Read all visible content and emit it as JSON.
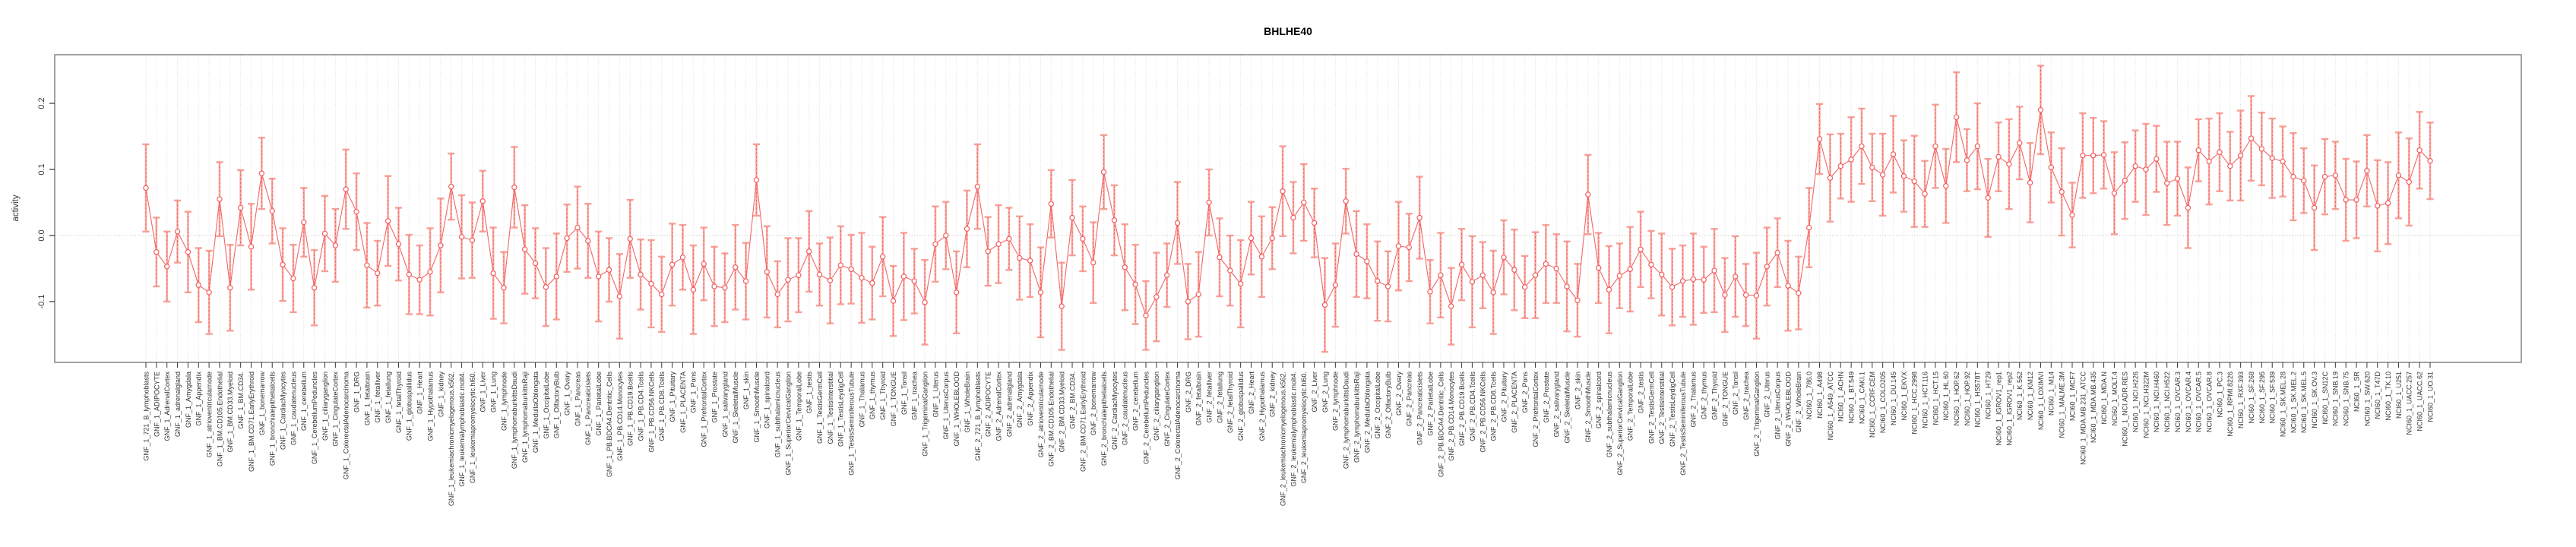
{
  "chart_data": {
    "type": "line",
    "title": "BHLHE40",
    "xlabel": "",
    "ylabel": "activity",
    "ylim": [
      -0.19,
      0.27
    ],
    "yticks": [
      -0.1,
      0.0,
      0.1,
      0.2
    ],
    "ytick_labels": [
      "-0.1",
      "0.0",
      "0.1",
      "0.2"
    ],
    "grid": "vertical-dotted",
    "zero_line": true,
    "legend": "none",
    "point_style": "open-circle-with-error-bars",
    "categories": [
      "GNF_1_721_B_lymphoblasts",
      "GNF_1_ADIPOCYTE",
      "GNF_1_AdrenalCortex",
      "GNF_1_adrenalgland",
      "GNF_1_Amygdala",
      "GNF_1_Appendix",
      "GNF_1_atrioventricularnode",
      "GNF_1_BM.CD105.Endothelial",
      "GNF_1_BM.CD33.Myeloid",
      "GNF_1_BM.CD34.",
      "GNF_1_BM.CD71.EarlyErythroid",
      "GNF_1_bonemarrow",
      "GNF_1_bronchialepithelialcells",
      "GNF_1_CardiacMyocytes",
      "GNF_1_caudatenucleus",
      "GNF_1_cerebellum",
      "GNF_1_CerebellumPeduncles",
      "GNF_1_ciliaryganglion",
      "GNF_1_CingulateCortex",
      "GNF_1_ColorectalAdenocarcinoma",
      "GNF_1_DRG",
      "GNF_1_fetalbrain",
      "GNF_1_fetalliver",
      "GNF_1_fetallung",
      "GNF_1_fetalThyroid",
      "GNF_1_globuspallidus",
      "GNF_1_Heart",
      "GNF_1_Hypothalamus",
      "GNF_1_kidney",
      "GNF_1_leukemiachronicmyelogenous.k562.",
      "GNF_1_leukemialymphoblastic.molt4.",
      "GNF_1_leukemiapromyelocytic.hl60.",
      "GNF_1_Liver",
      "GNF_1_Lung",
      "GNF_1_lymphnode",
      "GNF_1_lymphomaburkittsDaudi",
      "GNF_1_lymphomaburkittsRaji",
      "GNF_1_MedullaOblongata",
      "GNF_1_OccipitalLobe",
      "GNF_1_OlfactoryBulb",
      "GNF_1_Ovary",
      "GNF_1_Pancreas",
      "GNF_1_Pancreaticislets",
      "GNF_1_ParietalLobe",
      "GNF_1_PB.BDCA4.Dentritic_Cells",
      "GNF_1_PB.CD14.Monocytes",
      "GNF_1_PB.CD19.Bcells",
      "GNF_1_PB.CD4.Tcells",
      "GNF_1_PB.CD56.NKCells",
      "GNF_1_PB.CD8.Tcells",
      "GNF_1_Pituitary",
      "GNF_1_PLACENTA",
      "GNF_1_Pons",
      "GNF_1_PrefrontalCortex",
      "GNF_1_Prostate",
      "GNF_1_salivarygland",
      "GNF_1_SkeletalMuscle",
      "GNF_1_skin",
      "GNF_1_SmoothMuscle",
      "GNF_1_spinalcord",
      "GNF_1_subthalamicnucleus",
      "GNF_1_SuperiorCervicalGanglion",
      "GNF_1_TemporalLobe",
      "GNF_1_testis",
      "GNF_1_TestisGermCell",
      "GNF_1_TestisInterstitial",
      "GNF_1_TestisLeydigCell",
      "GNF_1_TestisSeminiferousTubule",
      "GNF_1_Thalamus",
      "GNF_1_thymus",
      "GNF_1_Thyroid",
      "GNF_1_TONGUE",
      "GNF_1_Tonsil",
      "GNF_1_trachea",
      "GNF_1_TrigeminalGanglion",
      "GNF_1_Uterus",
      "GNF_1_UterusCorpus",
      "GNF_1_WHOLEBLOOD",
      "GNF_1_WholeBrain",
      "GNF_2_721_B_lymphoblasts",
      "GNF_2_ADIPOCYTE",
      "GNF_2_AdrenalCortex",
      "GNF_2_adrenalgland",
      "GNF_2_Amygdala",
      "GNF_2_Appendix",
      "GNF_2_atrioventricularnode",
      "GNF_2_BM.CD105.Endothelial",
      "GNF_2_BM.CD33.Myeloid",
      "GNF_2_BM.CD34.",
      "GNF_2_BM.CD71.EarlyErythroid",
      "GNF_2_bonemarrow",
      "GNF_2_bronchialepithelialcells",
      "GNF_2_CardiacMyocytes",
      "GNF_2_caudatenucleus",
      "GNF_2_cerebellum",
      "GNF_2_CerebellumPeduncles",
      "GNF_2_ciliaryganglion",
      "GNF_2_CingulateCortex",
      "GNF_2_ColorectalAdenocarcinoma",
      "GNF_2_DRG",
      "GNF_2_fetalbrain",
      "GNF_2_fetalliver",
      "GNF_2_fetallung",
      "GNF_2_fetalThyroid",
      "GNF_2_globuspallidus",
      "GNF_2_Heart",
      "GNF_2_Hypothalamus",
      "GNF_2_kidney",
      "GNF_2_leukemiachronicmyelogenous.k562.",
      "GNF_2_leukemialymphoblastic.molt4.",
      "GNF_2_leukemiapromyelocytic.hl60.",
      "GNF_2_Liver",
      "GNF_2_Lung",
      "GNF_2_lymphnode",
      "GNF_2_lymphomaburkittsDaudi",
      "GNF_2_lymphomaburkittsRaji",
      "GNF_2_MedullaOblongata",
      "GNF_2_OccipitalLobe",
      "GNF_2_OlfactoryBulb",
      "GNF_2_Ovary",
      "GNF_2_Pancreas",
      "GNF_2_Pancreaticislets",
      "GNF_2_ParietalLobe",
      "GNF_2_PB.BDCA4.Dentritic_Cells",
      "GNF_2_PB.CD14.Monocytes",
      "GNF_2_PB.CD19.Bcells",
      "GNF_2_PB.CD4.Tcells",
      "GNF_2_PB.CD56.NKCells",
      "GNF_2_PB.CD8.Tcells",
      "GNF_2_Pituitary",
      "GNF_2_PLACENTA",
      "GNF_2_Pons",
      "GNF_2_PrefrontalCortex",
      "GNF_2_Prostate",
      "GNF_2_salivarygland",
      "GNF_2_SkeletalMuscle",
      "GNF_2_skin",
      "GNF_2_SmoothMuscle",
      "GNF_2_spinalcord",
      "GNF_2_subthalamicnucleus",
      "GNF_2_SuperiorCervicalGanglion",
      "GNF_2_TemporalLobe",
      "GNF_2_testis",
      "GNF_2_TestisGermCell",
      "GNF_2_TestisInterstitial",
      "GNF_2_TestisLeydigCell",
      "GNF_2_TestisSeminiferousTubule",
      "GNF_2_Thalamus",
      "GNF_2_thymus",
      "GNF_2_Thyroid",
      "GNF_2_TONGUE",
      "GNF_2_Tonsil",
      "GNF_2_trachea",
      "GNF_2_TrigeminalGanglion",
      "GNF_2_Uterus",
      "GNF_2_UterusCorpus",
      "GNF_2_WHOLEBLOOD",
      "GNF_2_WholeBrain",
      "NCI60_1_786.0",
      "NCI60_1_A498",
      "NCI60_1_A549_ATCC",
      "NCI60_1_ACHN",
      "NCI60_1_BT.549",
      "NCI60_1_CAKI.1",
      "NCI60_1_CCRF.CEM",
      "NCI60_1_COLO205",
      "NCI60_1_DU.145",
      "NCI60_1_EKVX",
      "NCI60_1_HCC.2998",
      "NCI60_1_HCT.116",
      "NCI60_1_HCT.15",
      "NCI60_1_HL.60",
      "NCI60_1_HOP.62",
      "NCI60_1_HOP.92",
      "NCI60_1_HS578T",
      "NCI60_1_HT29",
      "NCI60_1_IGROV1_rep1",
      "NCI60_1_IGROV1_rep2",
      "NCI60_1_K.562",
      "NCI60_1_KM12",
      "NCI60_1_LOXIMVI",
      "NCI60_1_M14",
      "NCI60_1_MALME.3M",
      "NCI60_1_MCF7",
      "NCI60_1_MDA.MB.231_ATCC",
      "NCI60_1_MDA.MB.435",
      "NCI60_1_MDA.N",
      "NCI60_1_MOLT.4",
      "NCI60_1_NCI.ADR.RES",
      "NCI60_1_NCI.H226",
      "NCI60_1_NCI.H322M",
      "NCI60_1_NCI.H460",
      "NCI60_1_NCI.H522",
      "NCI60_1_OVCAR.3",
      "NCI60_1_OVCAR.4",
      "NCI60_1_OVCAR.5",
      "NCI60_1_OVCAR.8",
      "NCI60_1_PC.3",
      "NCI60_1_RPMI.8226",
      "NCI60_1_RXF.393",
      "NCI60_1_SF.268",
      "NCI60_1_SF.295",
      "NCI60_1_SF.539",
      "NCI60_1_SK.MEL.28",
      "NCI60_1_SK.MEL.2",
      "NCI60_1_SK.MEL.5",
      "NCI60_1_SK.OV.3",
      "NCI60_1_SN12C",
      "NCI60_1_SNB.19",
      "NCI60_1_SNB.75",
      "NCI60_1_SR",
      "NCI60_1_SW.620",
      "NCI60_1_T47D",
      "NCI60_1_TK.10",
      "NCI60_1_U251",
      "NCI60_1_UACC.257",
      "NCI60_1_UACC.62",
      "NCI60_1_UO.31"
    ],
    "values": [
      0.072,
      -0.025,
      -0.047,
      0.006,
      -0.025,
      -0.075,
      -0.086,
      0.055,
      -0.079,
      0.042,
      -0.017,
      0.094,
      0.037,
      -0.044,
      -0.065,
      0.02,
      -0.079,
      0.003,
      -0.015,
      0.07,
      0.036,
      -0.045,
      -0.057,
      0.022,
      -0.013,
      -0.059,
      -0.067,
      -0.055,
      -0.015,
      0.074,
      -0.002,
      -0.007,
      0.052,
      -0.057,
      -0.079,
      0.073,
      -0.021,
      -0.042,
      -0.078,
      -0.062,
      -0.004,
      0.012,
      -0.008,
      -0.062,
      -0.052,
      -0.092,
      -0.005,
      -0.059,
      -0.073,
      -0.089,
      -0.044,
      -0.033,
      -0.082,
      -0.043,
      -0.077,
      -0.079,
      -0.048,
      -0.069,
      0.084,
      -0.055,
      -0.089,
      -0.067,
      -0.06,
      -0.024,
      -0.059,
      -0.068,
      -0.045,
      -0.051,
      -0.064,
      -0.072,
      -0.032,
      -0.099,
      -0.062,
      -0.069,
      -0.101,
      -0.013,
      0.0,
      -0.086,
      0.01,
      0.074,
      -0.024,
      -0.013,
      -0.005,
      -0.034,
      -0.038,
      -0.086,
      0.048,
      -0.107,
      0.027,
      -0.005,
      -0.041,
      0.096,
      0.023,
      -0.048,
      -0.074,
      -0.121,
      -0.093,
      -0.06,
      0.019,
      -0.1,
      -0.089,
      0.05,
      -0.033,
      -0.053,
      -0.073,
      -0.004,
      -0.032,
      -0.004,
      0.067,
      0.027,
      0.05,
      0.019,
      -0.105,
      -0.075,
      0.052,
      -0.028,
      -0.039,
      -0.069,
      -0.077,
      -0.016,
      -0.018,
      0.027,
      -0.085,
      -0.06,
      -0.107,
      -0.044,
      -0.07,
      -0.06,
      -0.086,
      -0.033,
      -0.052,
      -0.078,
      -0.06,
      -0.043,
      -0.05,
      -0.077,
      -0.098,
      0.062,
      -0.049,
      -0.082,
      -0.061,
      -0.051,
      -0.021,
      -0.044,
      -0.059,
      -0.078,
      -0.069,
      -0.066,
      -0.067,
      -0.053,
      -0.09,
      -0.062,
      -0.09,
      -0.091,
      -0.047,
      -0.026,
      -0.076,
      -0.087,
      0.012,
      0.146,
      0.087,
      0.105,
      0.115,
      0.135,
      0.103,
      0.092,
      0.123,
      0.09,
      0.082,
      0.063,
      0.135,
      0.075,
      0.179,
      0.114,
      0.135,
      0.057,
      0.119,
      0.108,
      0.14,
      0.08,
      0.19,
      0.103,
      0.066,
      0.031,
      0.121,
      0.121,
      0.122,
      0.064,
      0.083,
      0.105,
      0.1,
      0.116,
      0.079,
      0.086,
      0.042,
      0.129,
      0.112,
      0.126,
      0.105,
      0.121,
      0.147,
      0.131,
      0.117,
      0.112,
      0.089,
      0.083,
      0.042,
      0.089,
      0.091,
      0.054,
      0.054,
      0.098,
      0.045,
      0.049,
      0.091,
      0.081,
      0.129,
      0.113
    ],
    "error": [
      0.066,
      0.052,
      0.053,
      0.047,
      0.061,
      0.056,
      0.063,
      0.056,
      0.065,
      0.057,
      0.065,
      0.054,
      0.049,
      0.055,
      0.051,
      0.052,
      0.057,
      0.057,
      0.055,
      0.06,
      0.058,
      0.064,
      0.049,
      0.068,
      0.055,
      0.06,
      0.052,
      0.066,
      0.071,
      0.05,
      0.063,
      0.057,
      0.046,
      0.069,
      0.054,
      0.061,
      0.067,
      0.053,
      0.059,
      0.065,
      0.051,
      0.062,
      0.056,
      0.068,
      0.048,
      0.064,
      0.059,
      0.053,
      0.066,
      0.057,
      0.062,
      0.049,
      0.067,
      0.055,
      0.06,
      0.052,
      0.064,
      0.058,
      0.054,
      0.069,
      0.05,
      0.063,
      0.056,
      0.061,
      0.047,
      0.065,
      0.059,
      0.052,
      0.068,
      0.055,
      0.06,
      0.053,
      0.066,
      0.049,
      0.064,
      0.057,
      0.051,
      0.062,
      0.058,
      0.064,
      0.052,
      0.059,
      0.047,
      0.063,
      0.055,
      0.068,
      0.051,
      0.066,
      0.057,
      0.049,
      0.061,
      0.056,
      0.053,
      0.065,
      0.06,
      0.052,
      0.067,
      0.048,
      0.062,
      0.057,
      0.064,
      0.05,
      0.059,
      0.053,
      0.066,
      0.055,
      0.061,
      0.047,
      0.068,
      0.054,
      0.058,
      0.052,
      0.071,
      0.063,
      0.049,
      0.065,
      0.056,
      0.06,
      0.053,
      0.067,
      0.051,
      0.062,
      0.048,
      0.064,
      0.058,
      0.054,
      0.069,
      0.05,
      0.063,
      0.056,
      0.061,
      0.047,
      0.065,
      0.059,
      0.052,
      0.068,
      0.055,
      0.06,
      0.053,
      0.066,
      0.049,
      0.064,
      0.057,
      0.051,
      0.062,
      0.058,
      0.054,
      0.069,
      0.05,
      0.063,
      0.056,
      0.061,
      0.047,
      0.065,
      0.059,
      0.052,
      0.068,
      0.055,
      0.06,
      0.053,
      0.066,
      0.049,
      0.064,
      0.057,
      0.051,
      0.062,
      0.058,
      0.054,
      0.069,
      0.05,
      0.063,
      0.056,
      0.068,
      0.047,
      0.065,
      0.059,
      0.052,
      0.068,
      0.055,
      0.06,
      0.067,
      0.053,
      0.066,
      0.049,
      0.064,
      0.057,
      0.051,
      0.062,
      0.058,
      0.054,
      0.069,
      0.05,
      0.063,
      0.056,
      0.061,
      0.047,
      0.065,
      0.059,
      0.052,
      0.068,
      0.064,
      0.055,
      0.06,
      0.053,
      0.066,
      0.049,
      0.064,
      0.057,
      0.051,
      0.062,
      0.058,
      0.054,
      0.069,
      0.062,
      0.065,
      0.066,
      0.058,
      0.058
    ]
  },
  "colors": {
    "series_line": "#f25e5e",
    "point_stroke": "#f25e5e",
    "error_bar": "#f7968c",
    "error_bar_dash": "#ef4d4d",
    "grid": "#d8d8d8",
    "zero_line": "#bdbdbd",
    "axis_box": "#8c8c8c",
    "tick": "#333333",
    "text": "#333333",
    "background": "#ffffff"
  }
}
